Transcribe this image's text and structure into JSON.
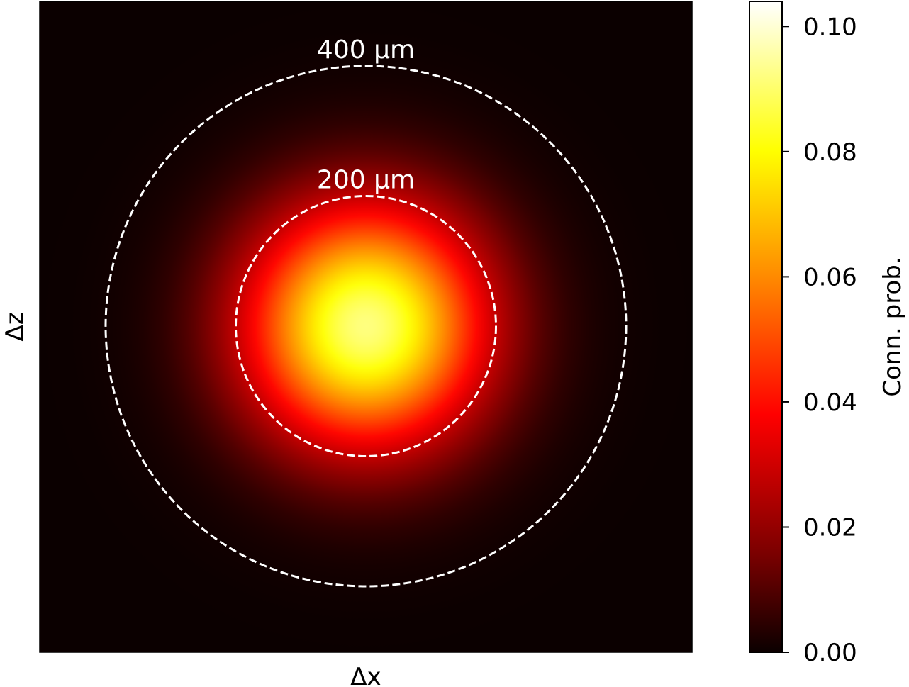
{
  "chart_data": {
    "type": "heatmap",
    "xlabel": "Δx",
    "ylabel": "Δz",
    "colormap": "hot",
    "color_stops": [
      "#0b0000",
      "#7a0000",
      "#ff0000",
      "#ff8c00",
      "#ffff00",
      "#ffffff"
    ],
    "peak_value": 0.092,
    "profile": "gaussian",
    "gaussian_sigma_um": 130,
    "colorbar": {
      "label": "Conn. prob.",
      "range": [
        0.0,
        0.104
      ],
      "ticks": [
        0.0,
        0.02,
        0.04,
        0.06,
        0.08,
        0.1
      ],
      "tick_labels": [
        "0.00",
        "0.02",
        "0.04",
        "0.06",
        "0.08",
        "0.10"
      ]
    },
    "reference_circles": [
      {
        "radius_um": 200,
        "label": "200 μm",
        "style": "dashed",
        "color": "#ffffff"
      },
      {
        "radius_um": 400,
        "label": "400 μm",
        "style": "dashed",
        "color": "#ffffff"
      }
    ]
  }
}
